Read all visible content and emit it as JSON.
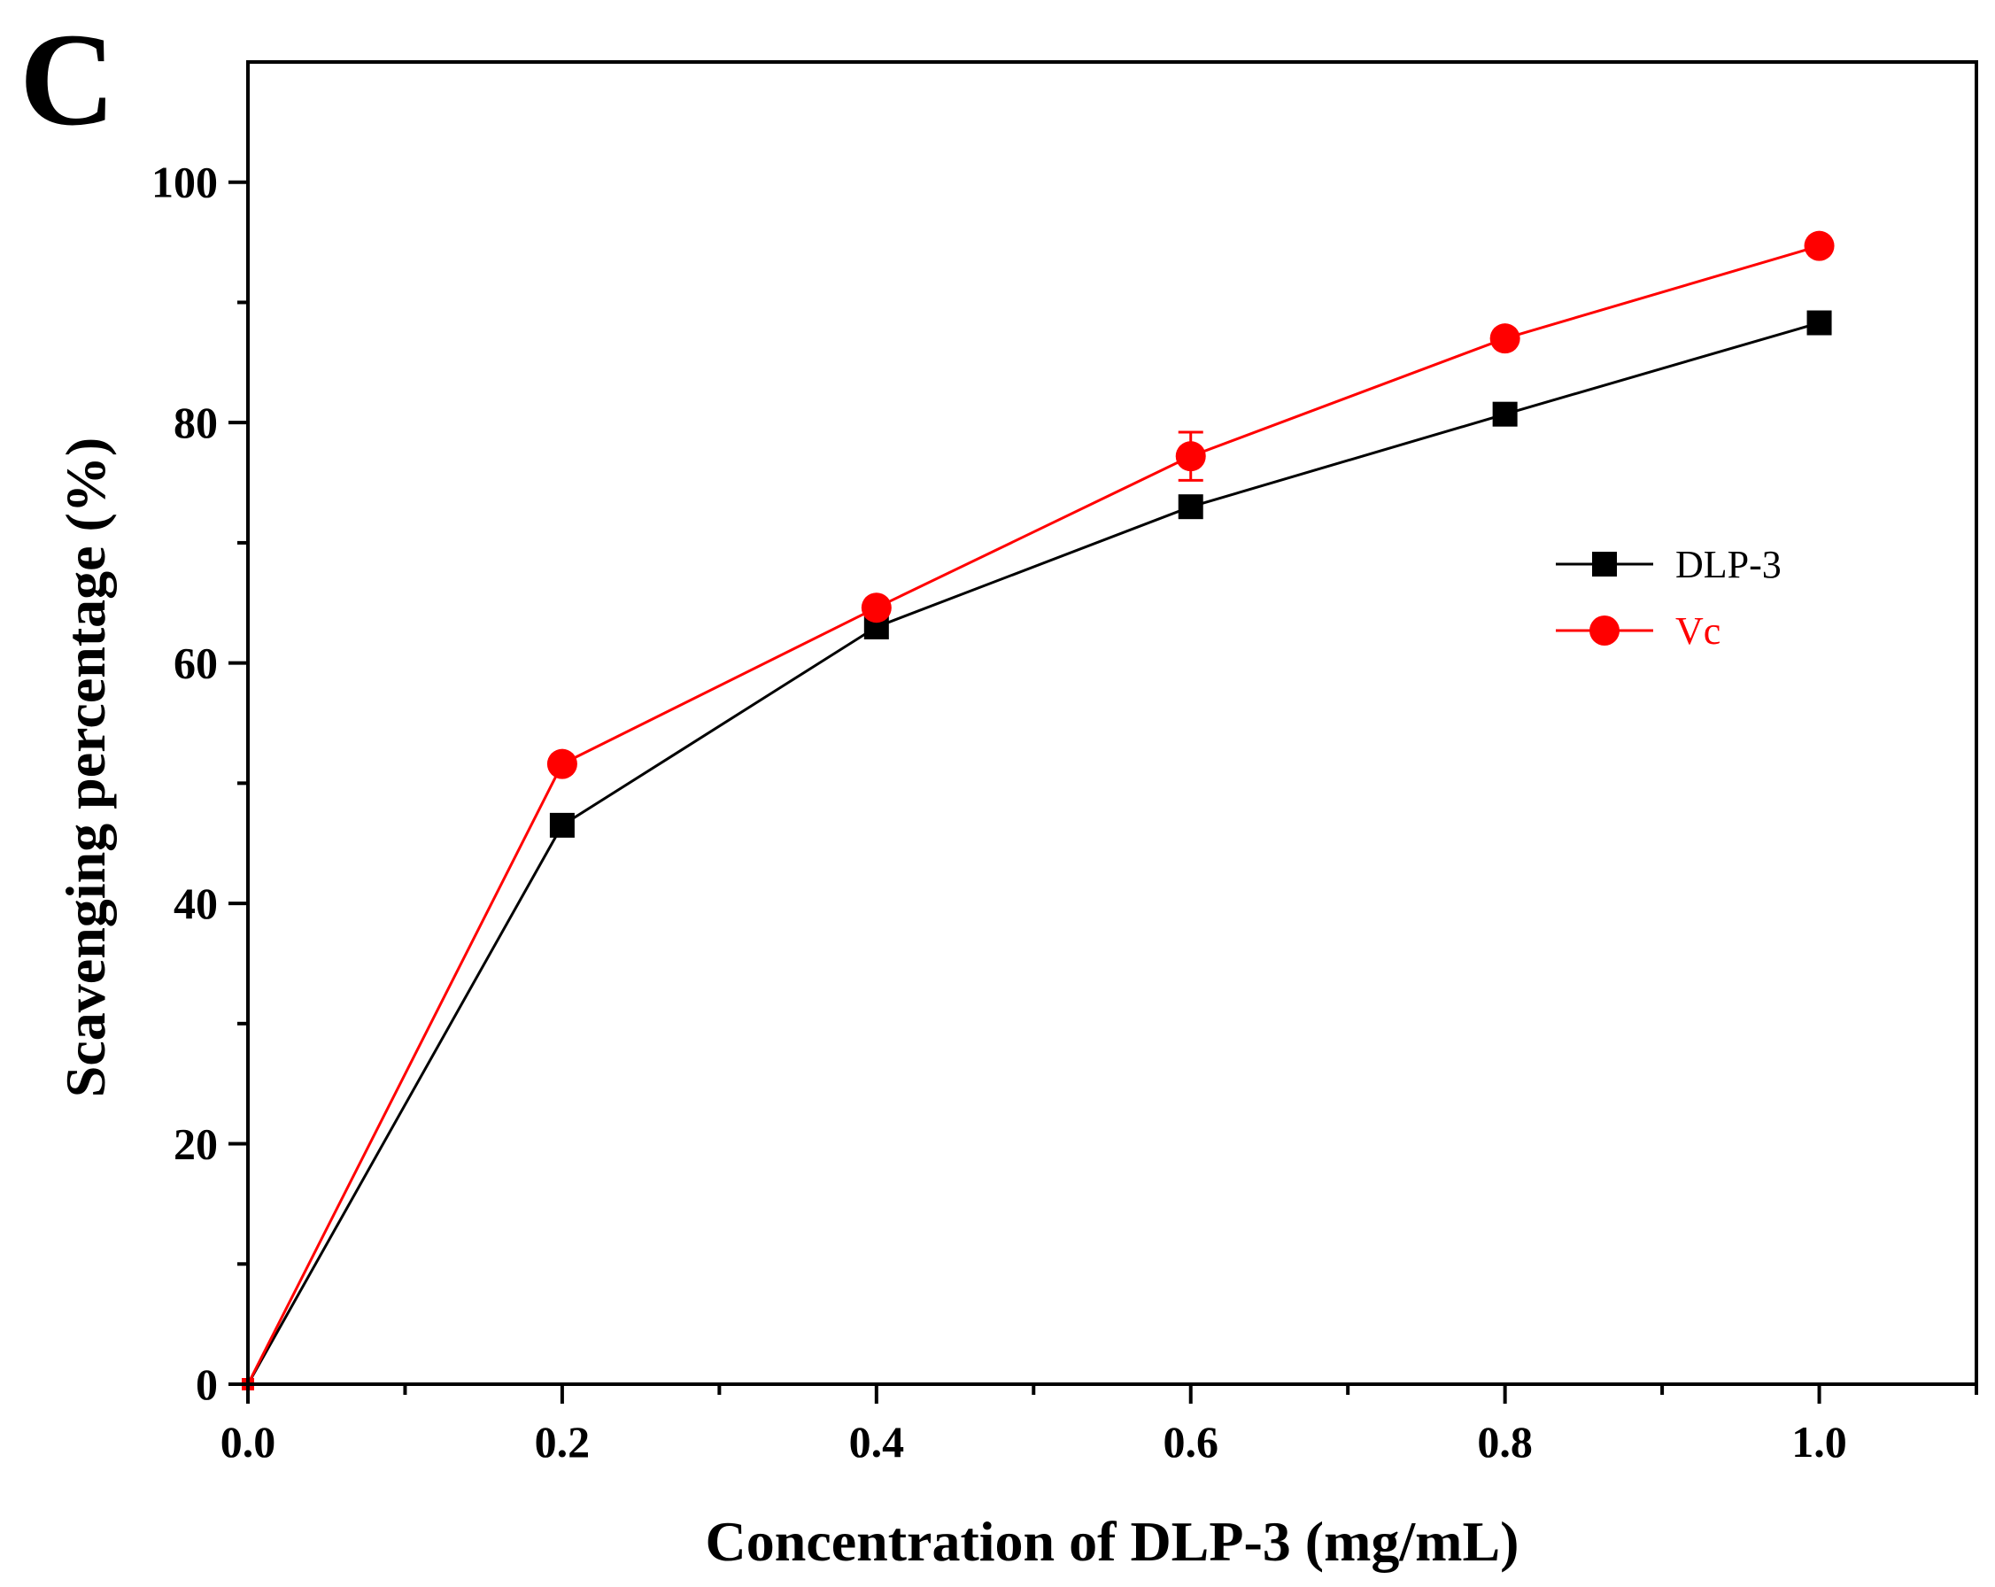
{
  "panel_label": "C",
  "colors": {
    "DLP-3": "#000000",
    "Vc": "#ff0000",
    "axis": "#000000",
    "background": "#ffffff"
  },
  "chart_data": {
    "type": "line",
    "xlabel": "Concentration of DLP-3 (mg/mL)",
    "ylabel": "Scavenging percentage (%)",
    "xlim": [
      0.0,
      1.1
    ],
    "ylim": [
      0,
      110
    ],
    "x_ticks": [
      0.0,
      0.2,
      0.4,
      0.6,
      0.8,
      1.0
    ],
    "x_tick_labels": [
      "0.0",
      "0.2",
      "0.4",
      "0.6",
      "0.8",
      "1.0"
    ],
    "x_minor_ticks": [
      0.1,
      0.3,
      0.5,
      0.7,
      0.9,
      1.1
    ],
    "y_ticks": [
      0,
      20,
      40,
      60,
      80,
      100
    ],
    "y_tick_labels": [
      "0",
      "20",
      "40",
      "60",
      "80",
      "100"
    ],
    "y_minor_ticks": [
      10,
      30,
      50,
      70,
      90
    ],
    "grid": false,
    "legend_position": "right-middle",
    "series": [
      {
        "name": "DLP-3",
        "marker": "square",
        "color": "#000000",
        "x": [
          0.0,
          0.2,
          0.4,
          0.6,
          0.8,
          1.0
        ],
        "y": [
          0,
          46.5,
          63.0,
          73.0,
          80.7,
          88.3
        ],
        "err": [
          0,
          0.5,
          0.5,
          0.5,
          0.5,
          0.5
        ]
      },
      {
        "name": "Vc",
        "marker": "circle",
        "color": "#ff0000",
        "x": [
          0.0,
          0.2,
          0.4,
          0.6,
          0.8,
          1.0
        ],
        "y": [
          0,
          51.6,
          64.6,
          77.2,
          87.0,
          94.7
        ],
        "err": [
          0,
          0.5,
          0.5,
          2.0,
          0.5,
          0.5
        ]
      }
    ]
  }
}
